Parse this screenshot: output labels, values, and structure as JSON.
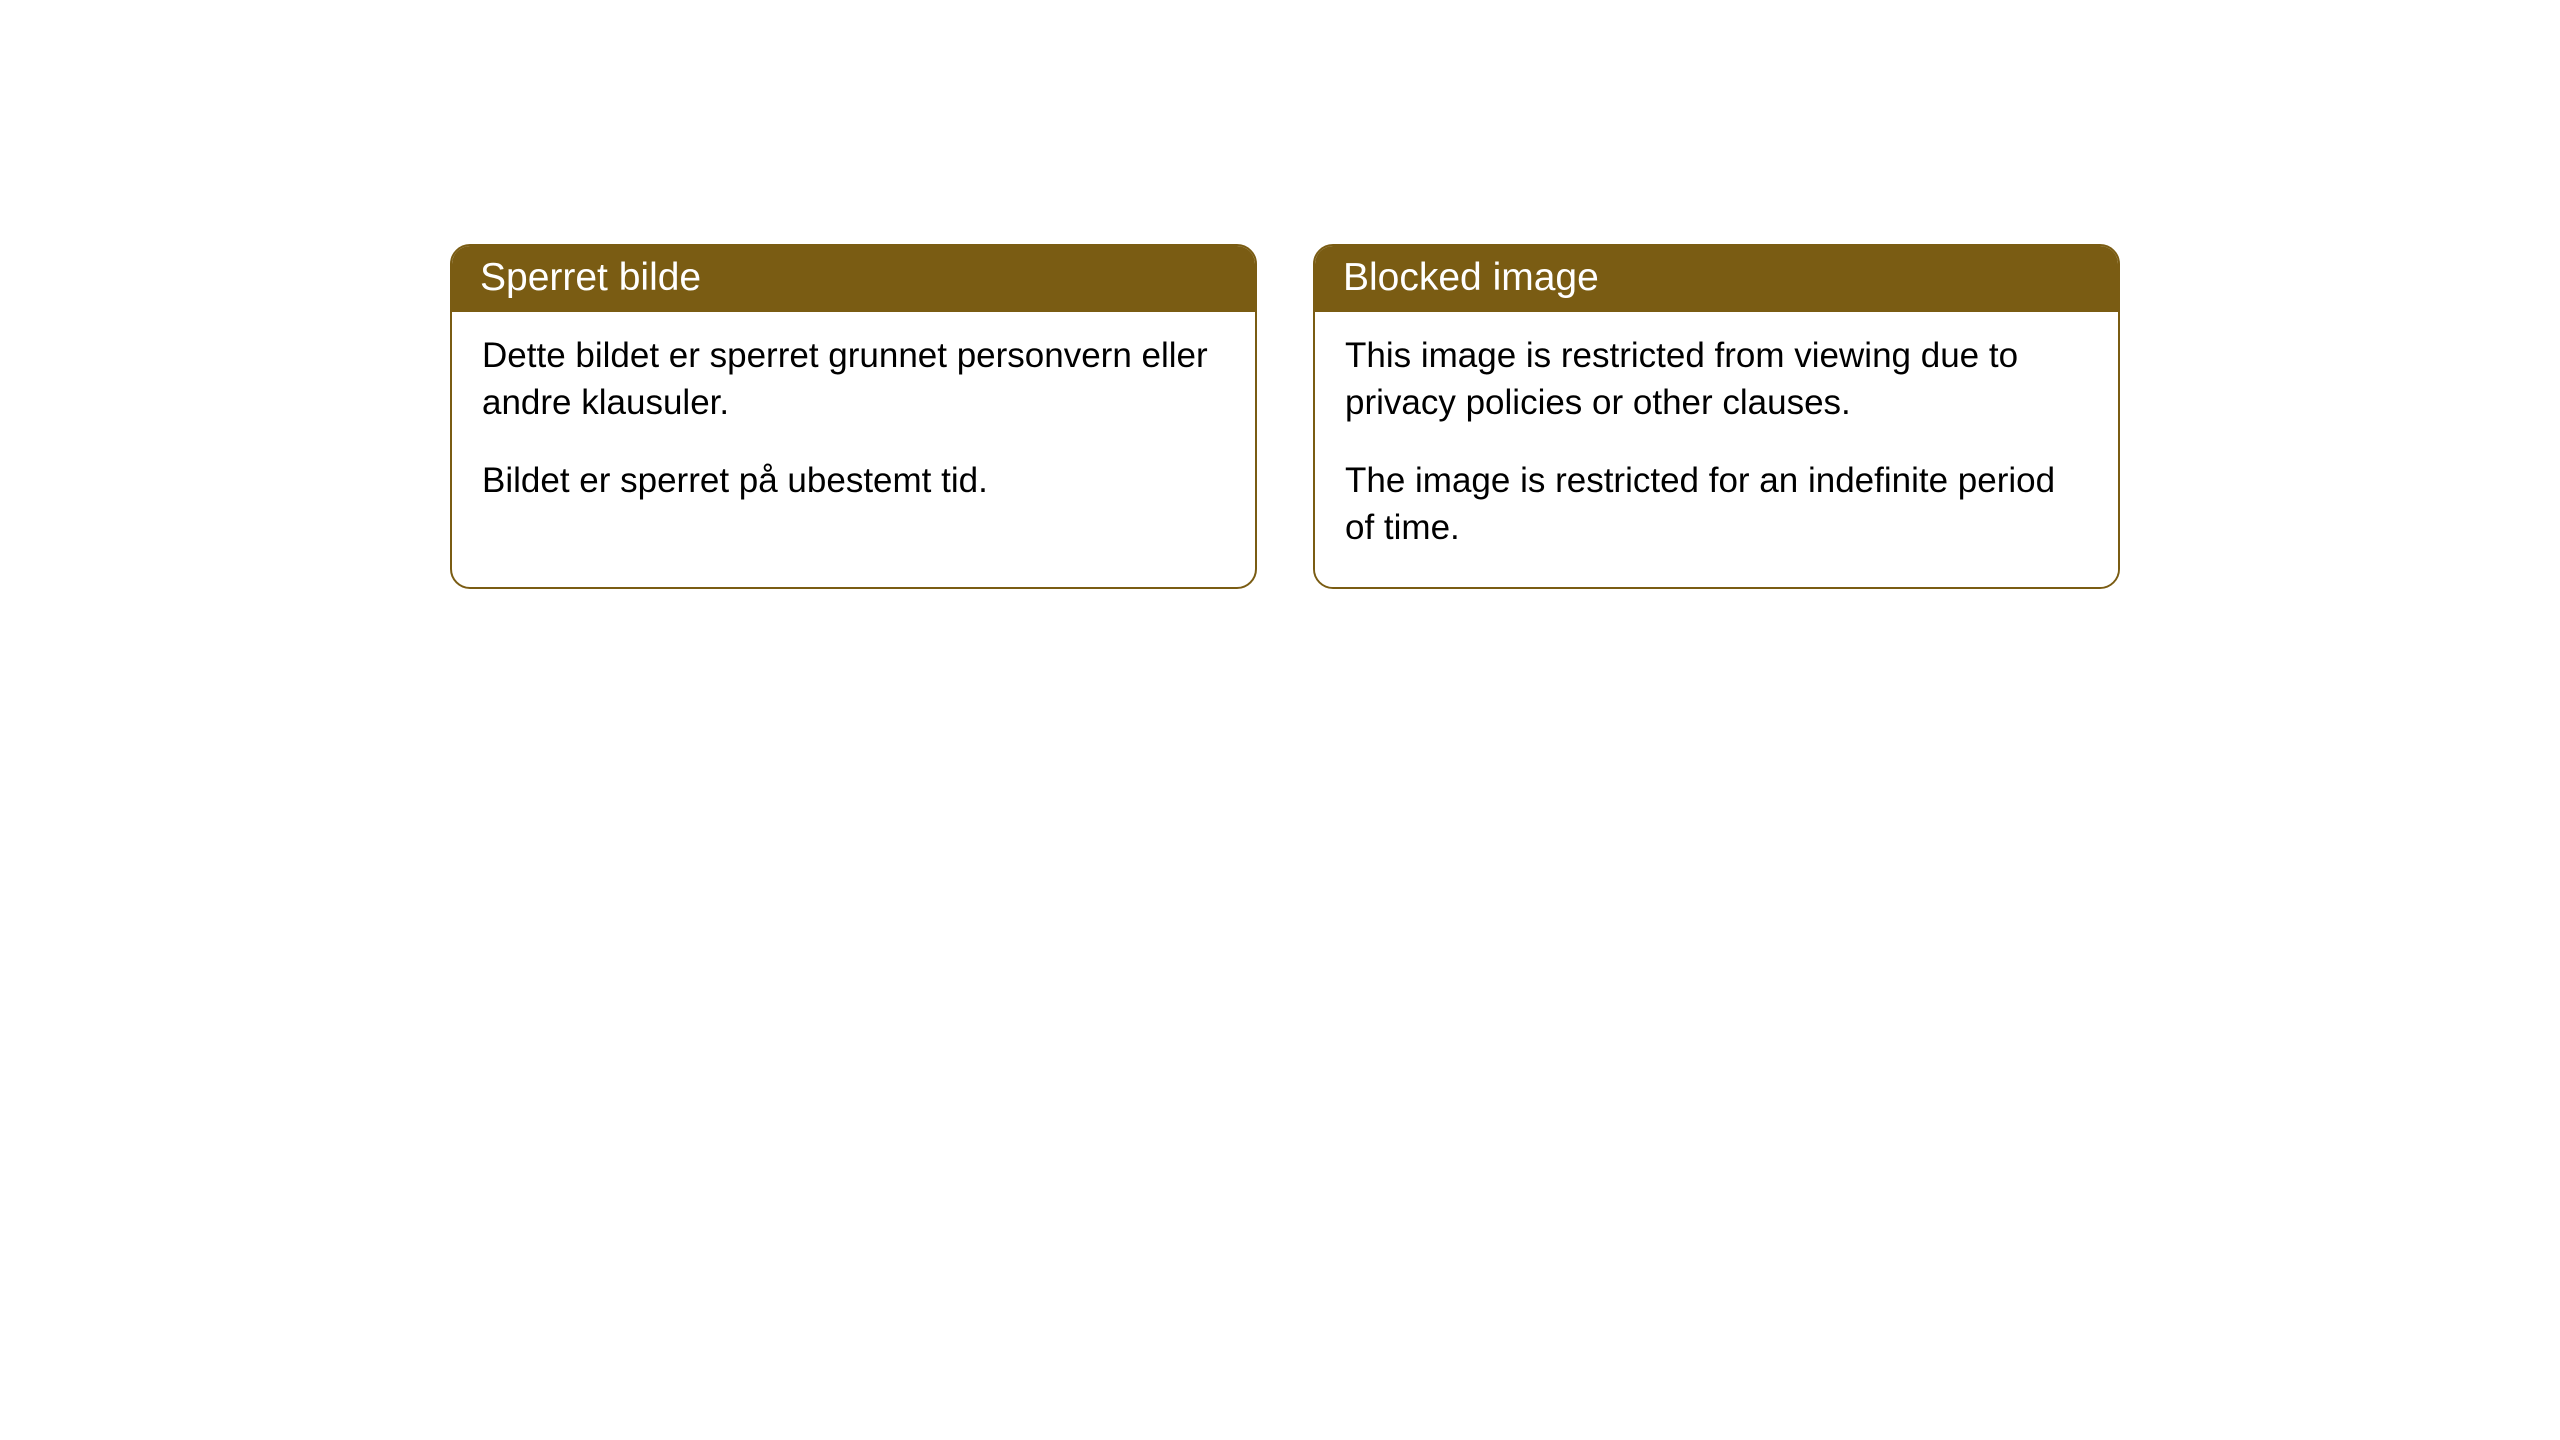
{
  "cards": [
    {
      "title": "Sperret bilde",
      "paragraph1": "Dette bildet er sperret grunnet personvern eller andre klausuler.",
      "paragraph2": "Bildet er sperret på ubestemt tid."
    },
    {
      "title": "Blocked image",
      "paragraph1": "This image is restricted from viewing due to privacy policies or other clauses.",
      "paragraph2": "The image is restricted for an indefinite period of time."
    }
  ],
  "colors": {
    "headerBackground": "#7a5c13",
    "headerText": "#ffffff",
    "cardBorder": "#7a5c13",
    "cardBackground": "#ffffff",
    "bodyText": "#000000",
    "pageBackground": "#ffffff"
  },
  "layout": {
    "cardWidth": 807,
    "cardGap": 56,
    "borderRadius": 20,
    "titleFontSize": 39,
    "bodyFontSize": 35
  }
}
